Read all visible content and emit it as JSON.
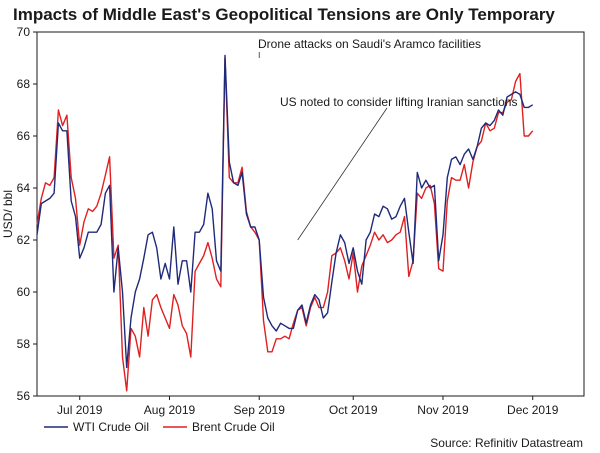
{
  "chart_data": {
    "type": "line",
    "title": "Impacts of Middle East's Geopolitical Tensions are Only Temporary",
    "xlabel": "",
    "ylabel": "USD/ bbl",
    "ylim": [
      56,
      70
    ],
    "yticks": [
      56,
      58,
      60,
      62,
      64,
      66,
      68,
      70
    ],
    "x_range": [
      0,
      128
    ],
    "month_ticks": [
      {
        "label": "Jul 2019",
        "x": 10
      },
      {
        "label": "Aug 2019",
        "x": 31
      },
      {
        "label": "Sep 2019",
        "x": 52
      },
      {
        "label": "Oct 2019",
        "x": 74
      },
      {
        "label": "Nov 2019",
        "x": 95
      },
      {
        "label": "Dec 2019",
        "x": 116
      }
    ],
    "annotations": [
      {
        "text": "Drone attacks on Saudi's Aramco facilities",
        "point_x": 52,
        "point_y": 69.0
      },
      {
        "text": "US noted to consider lifting Iranian sanctions",
        "point_x": 61,
        "point_y": 62.0
      }
    ],
    "series": [
      {
        "name": "WTI Crude Oil",
        "color": "#1f2a7a",
        "points": [
          [
            0,
            62.2
          ],
          [
            1,
            63.4
          ],
          [
            2,
            63.5
          ],
          [
            3,
            63.6
          ],
          [
            4,
            63.8
          ],
          [
            5,
            66.5
          ],
          [
            6,
            66.2
          ],
          [
            7,
            66.2
          ],
          [
            8,
            63.5
          ],
          [
            9,
            62.9
          ],
          [
            10,
            61.3
          ],
          [
            11,
            61.7
          ],
          [
            12,
            62.3
          ],
          [
            13,
            62.3
          ],
          [
            14,
            62.3
          ],
          [
            15,
            62.6
          ],
          [
            16,
            63.8
          ],
          [
            17,
            64.1
          ],
          [
            18,
            60.0
          ],
          [
            19,
            61.7
          ],
          [
            20,
            60.0
          ],
          [
            21,
            57.1
          ],
          [
            22,
            59.0
          ],
          [
            23,
            60.0
          ],
          [
            24,
            60.5
          ],
          [
            25,
            61.3
          ],
          [
            26,
            62.2
          ],
          [
            27,
            62.3
          ],
          [
            28,
            61.7
          ],
          [
            29,
            60.5
          ],
          [
            30,
            61.1
          ],
          [
            31,
            60.5
          ],
          [
            32,
            62.5
          ],
          [
            33,
            60.3
          ],
          [
            34,
            61.2
          ],
          [
            35,
            61.2
          ],
          [
            36,
            60.0
          ],
          [
            37,
            62.3
          ],
          [
            38,
            62.3
          ],
          [
            39,
            62.6
          ],
          [
            40,
            63.8
          ],
          [
            41,
            63.2
          ],
          [
            42,
            61.2
          ],
          [
            43,
            60.8
          ],
          [
            44,
            69.1
          ],
          [
            45,
            65.0
          ],
          [
            46,
            64.2
          ],
          [
            47,
            64.1
          ],
          [
            48,
            64.6
          ],
          [
            49,
            63.0
          ],
          [
            50,
            62.5
          ],
          [
            51,
            62.5
          ],
          [
            52,
            62.0
          ],
          [
            53,
            59.8
          ],
          [
            54,
            59.0
          ],
          [
            55,
            58.7
          ],
          [
            56,
            58.5
          ],
          [
            57,
            58.8
          ],
          [
            58,
            58.7
          ],
          [
            59,
            58.6
          ],
          [
            60,
            58.6
          ],
          [
            61,
            59.3
          ],
          [
            62,
            59.5
          ],
          [
            63,
            58.8
          ],
          [
            64,
            59.5
          ],
          [
            65,
            59.9
          ],
          [
            66,
            59.7
          ],
          [
            67,
            59.0
          ],
          [
            68,
            59.2
          ],
          [
            69,
            60.4
          ],
          [
            70,
            61.5
          ],
          [
            71,
            62.2
          ],
          [
            72,
            61.9
          ],
          [
            73,
            61.1
          ],
          [
            74,
            61.7
          ],
          [
            75,
            60.8
          ],
          [
            76,
            60.3
          ],
          [
            77,
            62.0
          ],
          [
            78,
            62.3
          ],
          [
            79,
            63.0
          ],
          [
            80,
            62.9
          ],
          [
            81,
            63.3
          ],
          [
            82,
            63.2
          ],
          [
            83,
            62.8
          ],
          [
            84,
            62.9
          ],
          [
            85,
            63.3
          ],
          [
            86,
            63.6
          ],
          [
            87,
            62.3
          ],
          [
            88,
            61.1
          ],
          [
            89,
            64.6
          ],
          [
            90,
            64.0
          ],
          [
            91,
            64.3
          ],
          [
            92,
            64.0
          ],
          [
            93,
            64.1
          ],
          [
            94,
            61.2
          ],
          [
            95,
            62.2
          ],
          [
            96,
            64.4
          ],
          [
            97,
            65.1
          ],
          [
            98,
            65.2
          ],
          [
            99,
            64.9
          ],
          [
            100,
            65.3
          ],
          [
            101,
            65.5
          ],
          [
            102,
            65.1
          ],
          [
            103,
            65.6
          ],
          [
            104,
            66.3
          ],
          [
            105,
            66.5
          ],
          [
            106,
            66.4
          ],
          [
            107,
            66.6
          ],
          [
            108,
            67.0
          ],
          [
            109,
            66.8
          ],
          [
            110,
            67.5
          ],
          [
            111,
            67.6
          ],
          [
            112,
            67.7
          ],
          [
            113,
            67.6
          ],
          [
            114,
            67.1
          ],
          [
            115,
            67.1
          ],
          [
            116,
            67.2
          ]
        ]
      },
      {
        "name": "Brent Crude Oil",
        "color": "#e02020",
        "points": [
          [
            0,
            62.6
          ],
          [
            1,
            63.6
          ],
          [
            2,
            64.2
          ],
          [
            3,
            64.1
          ],
          [
            4,
            64.4
          ],
          [
            5,
            67.0
          ],
          [
            6,
            66.4
          ],
          [
            7,
            66.8
          ],
          [
            8,
            64.4
          ],
          [
            9,
            63.6
          ],
          [
            10,
            61.8
          ],
          [
            11,
            62.7
          ],
          [
            12,
            63.2
          ],
          [
            13,
            63.1
          ],
          [
            14,
            63.3
          ],
          [
            15,
            63.8
          ],
          [
            16,
            64.5
          ],
          [
            17,
            65.2
          ],
          [
            18,
            61.3
          ],
          [
            19,
            61.8
          ],
          [
            20,
            57.5
          ],
          [
            21,
            56.2
          ],
          [
            22,
            58.6
          ],
          [
            23,
            58.3
          ],
          [
            24,
            57.5
          ],
          [
            25,
            59.4
          ],
          [
            26,
            58.3
          ],
          [
            27,
            59.7
          ],
          [
            28,
            59.9
          ],
          [
            29,
            59.4
          ],
          [
            30,
            59.0
          ],
          [
            31,
            58.6
          ],
          [
            32,
            59.9
          ],
          [
            33,
            59.5
          ],
          [
            34,
            58.7
          ],
          [
            35,
            58.4
          ],
          [
            36,
            57.5
          ],
          [
            37,
            60.8
          ],
          [
            38,
            61.1
          ],
          [
            39,
            61.4
          ],
          [
            40,
            61.9
          ],
          [
            41,
            61.3
          ],
          [
            42,
            60.5
          ],
          [
            43,
            60.2
          ],
          [
            44,
            69.0
          ],
          [
            45,
            64.4
          ],
          [
            46,
            64.2
          ],
          [
            47,
            64.2
          ],
          [
            48,
            64.8
          ],
          [
            49,
            63.1
          ],
          [
            50,
            62.5
          ],
          [
            51,
            62.3
          ],
          [
            52,
            62.0
          ],
          [
            53,
            58.9
          ],
          [
            54,
            57.7
          ],
          [
            55,
            57.7
          ],
          [
            56,
            58.2
          ],
          [
            57,
            58.2
          ],
          [
            58,
            58.3
          ],
          [
            59,
            58.2
          ],
          [
            60,
            58.8
          ],
          [
            61,
            59.3
          ],
          [
            62,
            59.4
          ],
          [
            63,
            58.7
          ],
          [
            64,
            59.4
          ],
          [
            65,
            59.8
          ],
          [
            66,
            59.4
          ],
          [
            67,
            59.4
          ],
          [
            68,
            60.0
          ],
          [
            69,
            61.4
          ],
          [
            70,
            61.5
          ],
          [
            71,
            61.7
          ],
          [
            72,
            61.2
          ],
          [
            73,
            60.5
          ],
          [
            74,
            61.5
          ],
          [
            75,
            60.0
          ],
          [
            76,
            61.0
          ],
          [
            77,
            61.4
          ],
          [
            78,
            61.8
          ],
          [
            79,
            62.3
          ],
          [
            80,
            62.0
          ],
          [
            81,
            62.2
          ],
          [
            82,
            61.9
          ],
          [
            83,
            62.0
          ],
          [
            84,
            62.2
          ],
          [
            85,
            62.3
          ],
          [
            86,
            62.9
          ],
          [
            87,
            60.6
          ],
          [
            88,
            61.2
          ],
          [
            89,
            63.8
          ],
          [
            90,
            63.6
          ],
          [
            91,
            64.0
          ],
          [
            92,
            64.1
          ],
          [
            93,
            63.4
          ],
          [
            94,
            60.9
          ],
          [
            95,
            60.8
          ],
          [
            96,
            63.5
          ],
          [
            97,
            64.4
          ],
          [
            98,
            64.3
          ],
          [
            99,
            64.3
          ],
          [
            100,
            64.9
          ],
          [
            101,
            64.0
          ],
          [
            102,
            65.0
          ],
          [
            103,
            65.6
          ],
          [
            104,
            65.8
          ],
          [
            105,
            66.5
          ],
          [
            106,
            66.2
          ],
          [
            107,
            66.3
          ],
          [
            108,
            66.9
          ],
          [
            109,
            66.9
          ],
          [
            110,
            67.3
          ],
          [
            111,
            67.4
          ],
          [
            112,
            68.1
          ],
          [
            113,
            68.4
          ],
          [
            114,
            66.0
          ],
          [
            115,
            66.0
          ],
          [
            116,
            66.2
          ]
        ]
      }
    ],
    "source": "Source: Refinitiv Datastream"
  }
}
